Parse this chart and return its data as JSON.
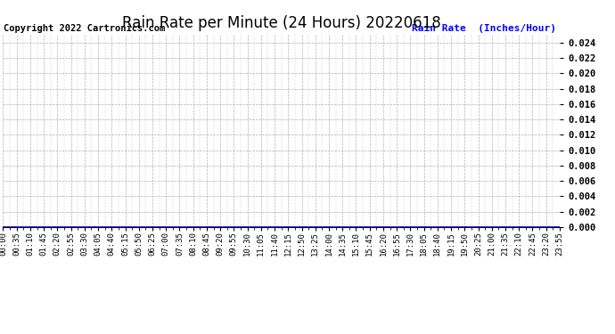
{
  "title": "Rain Rate per Minute (24 Hours) 20220618",
  "copyright_text": "Copyright 2022 Cartronics.com",
  "legend_label": "Rain Rate  (Inches/Hour)",
  "legend_color": "#0000ff",
  "copyright_color": "#000000",
  "title_color": "#000000",
  "background_color": "#ffffff",
  "plot_bg_color": "#ffffff",
  "grid_color": "#b0b0b0",
  "line_color": "#0000ff",
  "ylim": [
    0.0,
    0.0252
  ],
  "yticks": [
    0.0,
    0.002,
    0.004,
    0.006,
    0.008,
    0.01,
    0.012,
    0.014,
    0.016,
    0.018,
    0.02,
    0.022,
    0.024
  ],
  "x_tick_labels": [
    "00:00",
    "00:35",
    "01:10",
    "01:45",
    "02:20",
    "02:55",
    "03:30",
    "04:05",
    "04:40",
    "05:15",
    "05:50",
    "06:25",
    "07:00",
    "07:35",
    "08:10",
    "08:45",
    "09:20",
    "09:55",
    "10:30",
    "11:05",
    "11:40",
    "12:15",
    "12:50",
    "13:25",
    "14:00",
    "14:35",
    "15:10",
    "15:45",
    "16:20",
    "16:55",
    "17:30",
    "18:05",
    "18:40",
    "19:15",
    "19:50",
    "20:25",
    "21:00",
    "21:35",
    "22:10",
    "22:45",
    "23:20",
    "23:55"
  ],
  "num_points": 1440,
  "title_fontsize": 12,
  "tick_fontsize": 6.5,
  "ytick_fontsize": 7.5,
  "legend_fontsize": 8,
  "copyright_fontsize": 7.5,
  "figsize": [
    6.9,
    3.75
  ],
  "dpi": 100
}
